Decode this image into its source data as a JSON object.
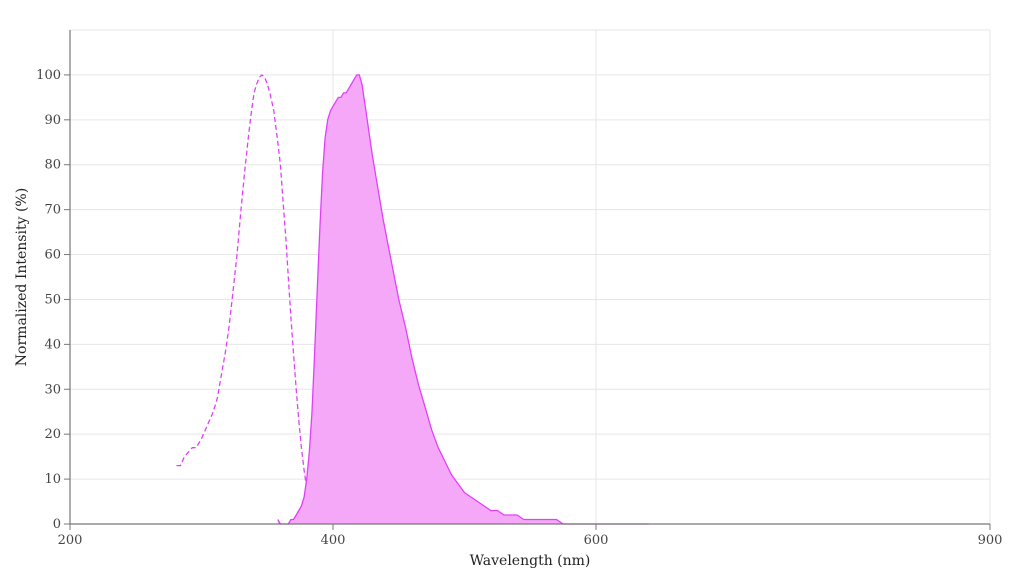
{
  "chart_data": {
    "type": "area",
    "xlabel": "Wavelength (nm)",
    "ylabel": "Normalized Intensity (%)",
    "xlim": [
      200,
      900
    ],
    "ylim": [
      0,
      110
    ],
    "x_breakpoints": [
      [
        200,
        200
      ],
      [
        400,
        400
      ],
      [
        600,
        600
      ],
      [
        900,
        900
      ]
    ],
    "x_ticks": [
      200,
      400,
      600,
      900
    ],
    "x_tick_labels": [
      "200",
      "400",
      "600",
      "900"
    ],
    "y_ticks": [
      0,
      10,
      20,
      30,
      40,
      50,
      60,
      70,
      80,
      90,
      100
    ],
    "y_tick_labels": [
      "0",
      "10",
      "20",
      "30",
      "40",
      "50",
      "60",
      "70",
      "80",
      "90",
      "100"
    ],
    "grid": true,
    "series": [
      {
        "role": "excitation",
        "style": "dashed",
        "color": "#e040fb",
        "filled": false,
        "x": [
          281,
          284,
          287,
          290,
          293,
          296,
          300,
          303,
          306,
          309,
          312,
          315,
          318,
          321,
          324,
          327,
          330,
          333,
          336,
          338,
          340,
          342,
          344,
          346,
          348,
          350,
          352,
          355,
          358,
          360,
          362,
          364,
          366,
          368,
          370,
          372,
          374,
          376,
          378,
          380,
          382,
          384,
          386,
          388,
          390,
          392,
          394,
          396,
          398,
          400,
          403,
          406
        ],
        "y": [
          13,
          13,
          15,
          16,
          17,
          17,
          19,
          21,
          23,
          25,
          28,
          33,
          38,
          44,
          52,
          60,
          70,
          79,
          87,
          92,
          96,
          98,
          99.5,
          100,
          99.5,
          98,
          96,
          92,
          85,
          80,
          72,
          64,
          55,
          46,
          38,
          30,
          23,
          17,
          12,
          8,
          5,
          3.5,
          2.5,
          2,
          1.5,
          1,
          0.8,
          0.5,
          0.3,
          0.2,
          0.1,
          0
        ]
      },
      {
        "role": "emission",
        "style": "solid",
        "color": "#e040fb",
        "filled": true,
        "fill_color": "#f5a8f8",
        "x": [
          358,
          360,
          362,
          364,
          366,
          368,
          370,
          372,
          374,
          376,
          378,
          380,
          382,
          384,
          386,
          388,
          390,
          392,
          394,
          396,
          398,
          400,
          402,
          404,
          406,
          408,
          410,
          412,
          414,
          416,
          418,
          420,
          422,
          424,
          426,
          428,
          430,
          434,
          438,
          442,
          446,
          450,
          455,
          460,
          465,
          470,
          475,
          480,
          485,
          490,
          495,
          500,
          505,
          510,
          515,
          520,
          525,
          530,
          535,
          540,
          545,
          550,
          555,
          560,
          565,
          570,
          575,
          580,
          590,
          600,
          620,
          640
        ],
        "y": [
          1,
          0,
          0,
          0,
          0,
          1,
          1,
          2,
          3,
          4,
          6,
          10,
          16,
          25,
          38,
          52,
          66,
          78,
          86,
          90,
          92,
          93,
          94,
          95,
          95,
          96,
          96,
          97,
          98,
          99,
          100,
          100,
          98,
          94,
          90,
          86,
          82,
          75,
          68,
          62,
          56,
          50,
          44,
          37,
          31,
          26,
          21,
          17,
          14,
          11,
          9,
          7,
          6,
          5,
          4,
          3,
          3,
          2,
          2,
          2,
          1,
          1,
          1,
          1,
          1,
          1,
          0,
          0,
          0,
          0,
          0,
          0
        ]
      }
    ]
  }
}
